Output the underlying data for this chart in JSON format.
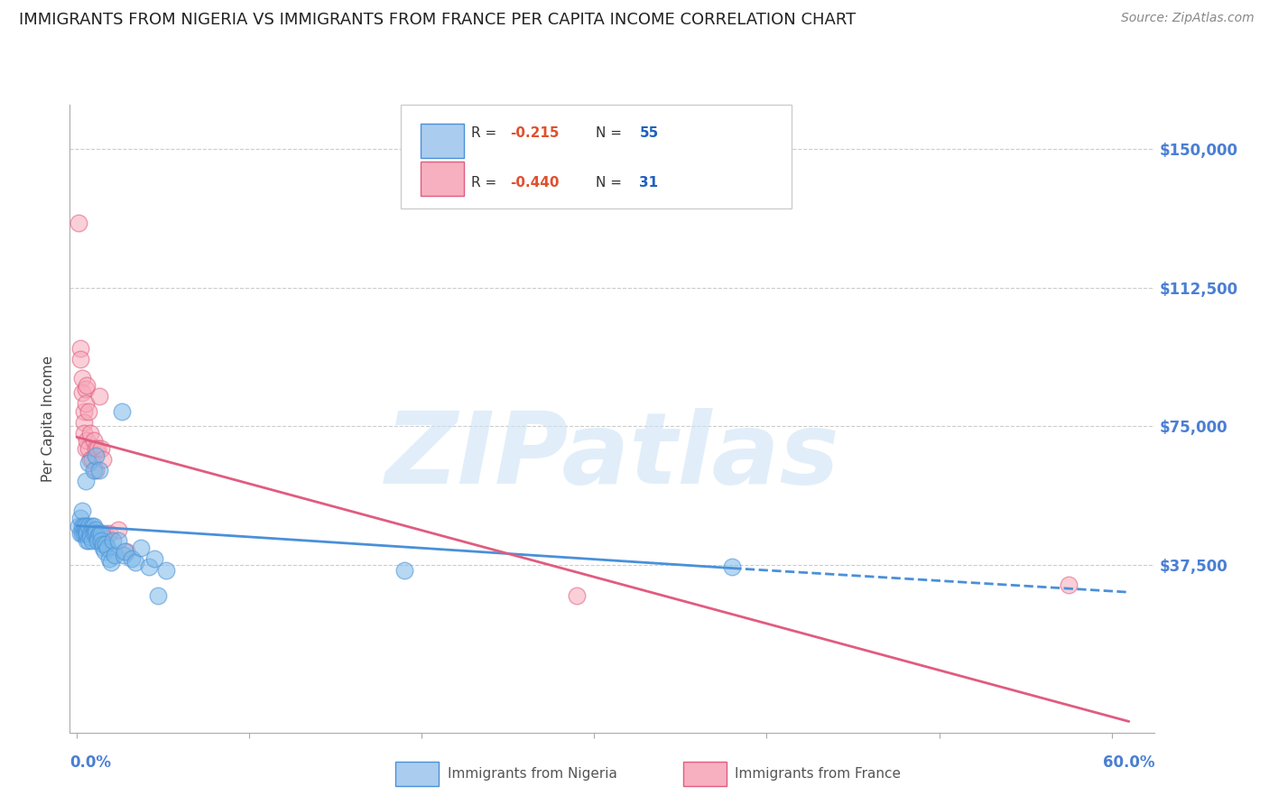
{
  "title": "IMMIGRANTS FROM NIGERIA VS IMMIGRANTS FROM FRANCE PER CAPITA INCOME CORRELATION CHART",
  "source": "Source: ZipAtlas.com",
  "ylabel": "Per Capita Income",
  "yticks": [
    0,
    37500,
    75000,
    112500,
    150000
  ],
  "ytick_labels": [
    "",
    "$37,500",
    "$75,000",
    "$112,500",
    "$150,000"
  ],
  "ylim": [
    -8000,
    162000
  ],
  "xlim": [
    -0.004,
    0.625
  ],
  "nigeria_color": "#7ab8e8",
  "france_color": "#f7a8b8",
  "nigeria_edge": "#4a90d9",
  "france_edge": "#e05c80",
  "background_color": "#ffffff",
  "grid_color": "#cccccc",
  "title_color": "#222222",
  "ylabel_color": "#444444",
  "watermark_text": "ZIPatlas",
  "nigeria_data": [
    [
      0.001,
      48000
    ],
    [
      0.002,
      46000
    ],
    [
      0.002,
      50000
    ],
    [
      0.003,
      46000
    ],
    [
      0.003,
      52000
    ],
    [
      0.003,
      48000
    ],
    [
      0.004,
      46000
    ],
    [
      0.004,
      48000
    ],
    [
      0.005,
      60000
    ],
    [
      0.005,
      48000
    ],
    [
      0.005,
      46000
    ],
    [
      0.006,
      44000
    ],
    [
      0.006,
      47000
    ],
    [
      0.006,
      46000
    ],
    [
      0.007,
      44000
    ],
    [
      0.007,
      65000
    ],
    [
      0.007,
      48000
    ],
    [
      0.008,
      46000
    ],
    [
      0.008,
      45000
    ],
    [
      0.009,
      44000
    ],
    [
      0.009,
      48000
    ],
    [
      0.01,
      63000
    ],
    [
      0.01,
      48000
    ],
    [
      0.01,
      46000
    ],
    [
      0.011,
      67000
    ],
    [
      0.011,
      47000
    ],
    [
      0.011,
      46000
    ],
    [
      0.012,
      45000
    ],
    [
      0.012,
      44000
    ],
    [
      0.013,
      63000
    ],
    [
      0.013,
      46000
    ],
    [
      0.014,
      46000
    ],
    [
      0.014,
      44000
    ],
    [
      0.015,
      42000
    ],
    [
      0.015,
      43000
    ],
    [
      0.016,
      41000
    ],
    [
      0.017,
      43000
    ],
    [
      0.018,
      42000
    ],
    [
      0.019,
      39000
    ],
    [
      0.02,
      38000
    ],
    [
      0.021,
      44000
    ],
    [
      0.022,
      40000
    ],
    [
      0.024,
      44000
    ],
    [
      0.026,
      79000
    ],
    [
      0.027,
      40000
    ],
    [
      0.028,
      41000
    ],
    [
      0.032,
      39000
    ],
    [
      0.034,
      38000
    ],
    [
      0.037,
      42000
    ],
    [
      0.042,
      37000
    ],
    [
      0.047,
      29000
    ],
    [
      0.052,
      36000
    ],
    [
      0.19,
      36000
    ],
    [
      0.38,
      37000
    ],
    [
      0.045,
      39000
    ]
  ],
  "france_data": [
    [
      0.001,
      130000
    ],
    [
      0.002,
      96000
    ],
    [
      0.002,
      93000
    ],
    [
      0.003,
      88000
    ],
    [
      0.003,
      84000
    ],
    [
      0.004,
      79000
    ],
    [
      0.004,
      76000
    ],
    [
      0.004,
      73000
    ],
    [
      0.005,
      85000
    ],
    [
      0.005,
      81000
    ],
    [
      0.005,
      69000
    ],
    [
      0.006,
      86000
    ],
    [
      0.006,
      71000
    ],
    [
      0.007,
      79000
    ],
    [
      0.007,
      69000
    ],
    [
      0.008,
      73000
    ],
    [
      0.008,
      66000
    ],
    [
      0.009,
      66000
    ],
    [
      0.01,
      71000
    ],
    [
      0.011,
      69000
    ],
    [
      0.011,
      63000
    ],
    [
      0.012,
      69000
    ],
    [
      0.013,
      83000
    ],
    [
      0.014,
      69000
    ],
    [
      0.015,
      66000
    ],
    [
      0.016,
      46000
    ],
    [
      0.019,
      46000
    ],
    [
      0.024,
      47000
    ],
    [
      0.029,
      41000
    ],
    [
      0.29,
      29000
    ],
    [
      0.575,
      32000
    ]
  ],
  "nigeria_line_solid": {
    "x0": 0.0,
    "x1": 0.38,
    "y0": 48000,
    "y1": 36500
  },
  "nigeria_line_dash": {
    "x0": 0.38,
    "x1": 0.61,
    "y0": 36500,
    "y1": 30000
  },
  "france_line": {
    "x0": 0.0,
    "x1": 0.61,
    "y0": 72000,
    "y1": -5000
  },
  "title_fontsize": 13,
  "source_fontsize": 10,
  "axis_tick_fontsize": 12
}
